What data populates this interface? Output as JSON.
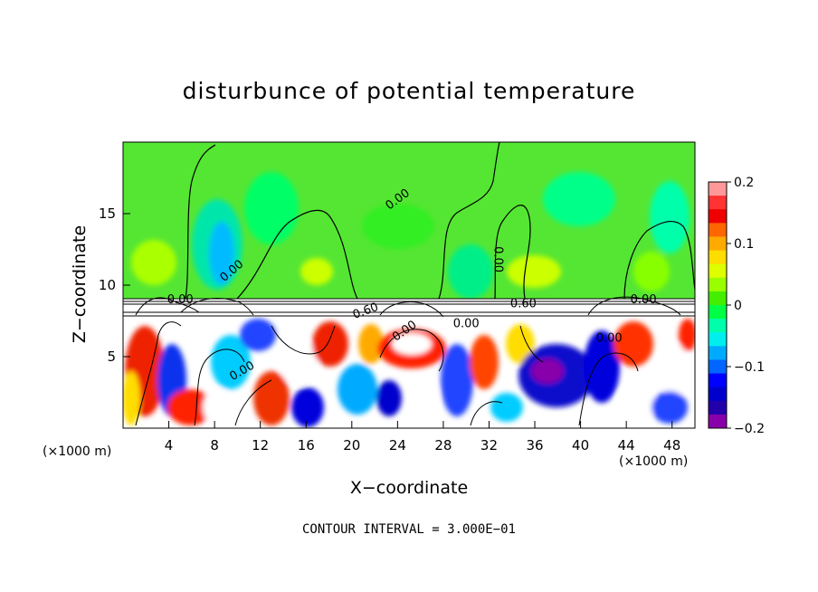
{
  "chart_data": {
    "type": "heatmap",
    "title": "disturbunce of potential temperature",
    "xlabel": "X−coordinate",
    "ylabel": "Z−coordinate",
    "x_unit": "(×1000 m)",
    "y_unit": "(×1000 m)",
    "footer": "CONTOUR INTERVAL = 3.000E−01",
    "xlim": [
      0,
      50
    ],
    "ylim": [
      0,
      20
    ],
    "x_ticks": [
      4,
      8,
      12,
      16,
      20,
      24,
      28,
      32,
      36,
      40,
      44,
      48
    ],
    "y_ticks": [
      5,
      10,
      15
    ],
    "colorbar": {
      "range": [
        -0.2,
        0.2
      ],
      "ticks": [
        "0.2",
        "0.1",
        "0",
        "−0.1",
        "−0.2"
      ],
      "colors": [
        "#ff9999",
        "#ff3333",
        "#ee0000",
        "#ff6600",
        "#ffaa00",
        "#ffdd00",
        "#ddff00",
        "#99ff00",
        "#44ee00",
        "#00ff44",
        "#00ffaa",
        "#00eeee",
        "#00aaff",
        "#0066ff",
        "#0000ff",
        "#0000cc",
        "#2200aa",
        "#8800aa"
      ]
    },
    "contour_labels": [
      {
        "text": "0.00",
        "x": 24.0,
        "z": 16.0,
        "angle": -36
      },
      {
        "text": "0.00",
        "x": 9.5,
        "z": 11.0,
        "angle": -40
      },
      {
        "text": "0.00",
        "x": 32.8,
        "z": 11.8,
        "angle": 90
      },
      {
        "text": "0.00",
        "x": 45.5,
        "z": 9.0,
        "angle": 0
      },
      {
        "text": "0.60",
        "x": 21.2,
        "z": 8.2,
        "angle": -20
      },
      {
        "text": "0.60",
        "x": 35.0,
        "z": 8.7,
        "angle": 0
      },
      {
        "text": "0.00",
        "x": 24.6,
        "z": 6.8,
        "angle": -35
      },
      {
        "text": "0.00",
        "x": 30.0,
        "z": 7.3,
        "angle": 0
      },
      {
        "text": "0.00",
        "x": 10.4,
        "z": 4.0,
        "angle": -30
      },
      {
        "text": "0.00",
        "x": 42.5,
        "z": 6.3,
        "angle": 0
      },
      {
        "text": "0.00",
        "x": 5.0,
        "z": 9.0,
        "angle": 0
      }
    ]
  }
}
